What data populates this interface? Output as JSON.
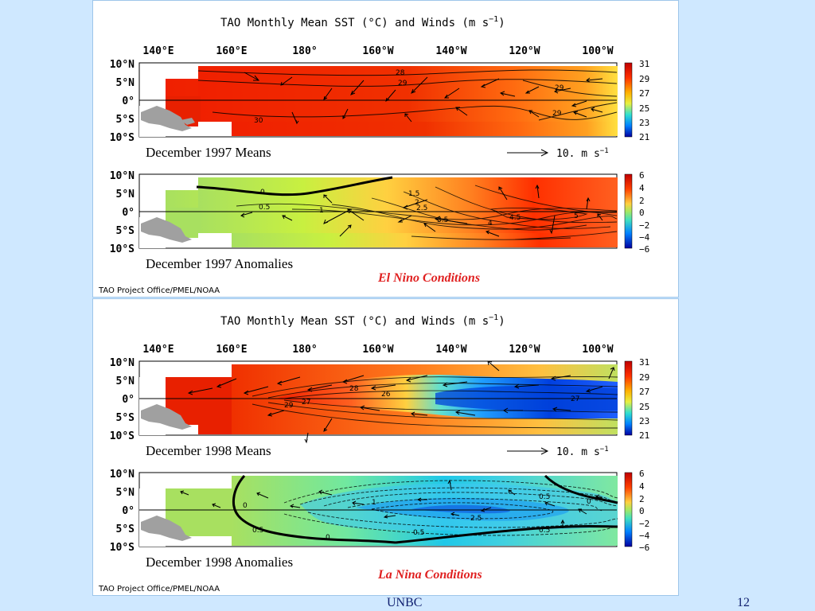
{
  "slide": {
    "footer_label": "UNBC",
    "page_number": "12"
  },
  "panels": [
    {
      "title": "TAO Monthly Mean SST (°C) and Winds (m s",
      "title_sup": "−1",
      "title_close": ")",
      "lon_labels": [
        "140°E",
        "160°E",
        "180°",
        "160°W",
        "140°W",
        "120°W",
        "100°W"
      ],
      "lat_labels": [
        "10°N",
        "5°N",
        "0°",
        "5°S",
        "10°S"
      ],
      "means_caption": "December 1997 Means",
      "wind_scale_label": "10.  m s",
      "wind_scale_sup": "−1",
      "anom_caption": "December 1997 Anomalies",
      "condition_label": "El Nino Conditions",
      "credit": "TAO Project Office/PMEL/NOAA",
      "sst_colorbar_ticks": [
        "31",
        "29",
        "27",
        "25",
        "23",
        "21"
      ],
      "anom_colorbar_ticks": [
        "6",
        "4",
        "2",
        "0",
        "−2",
        "−4",
        "−6"
      ],
      "sst_contour_labels": [
        "28",
        "29",
        "30",
        "29",
        "29"
      ],
      "anom_contour_labels": [
        "0",
        "0.5",
        "1",
        "1.5",
        "2",
        "2.5",
        "3.5",
        "4",
        "4.5",
        "5"
      ]
    },
    {
      "title": "TAO Monthly Mean SST (°C) and Winds (m s",
      "title_sup": "−1",
      "title_close": ")",
      "lon_labels": [
        "140°E",
        "160°E",
        "180°",
        "160°W",
        "140°W",
        "120°W",
        "100°W"
      ],
      "lat_labels": [
        "10°N",
        "5°N",
        "0°",
        "5°S",
        "10°S"
      ],
      "means_caption": "December 1998 Means",
      "wind_scale_label": "10.  m s",
      "wind_scale_sup": "−1",
      "anom_caption": "December 1998 Anomalies",
      "condition_label": "La Nina Conditions",
      "credit": "TAO Project Office/PMEL/NOAA",
      "sst_colorbar_ticks": [
        "31",
        "29",
        "27",
        "25",
        "23",
        "21"
      ],
      "anom_colorbar_ticks": [
        "6",
        "4",
        "2",
        "0",
        "−2",
        "−4",
        "−6"
      ],
      "sst_contour_labels": [
        "28",
        "26",
        "29",
        "27",
        "27"
      ],
      "anom_contour_labels": [
        "0",
        "0.5",
        "2.5",
        "1",
        "0",
        "0.5",
        "0.5",
        "0",
        "0.5"
      ]
    }
  ],
  "colors": {
    "background": "#cfe8ff",
    "el_nino_label": "#e02020",
    "la_nina_label": "#e02020"
  }
}
